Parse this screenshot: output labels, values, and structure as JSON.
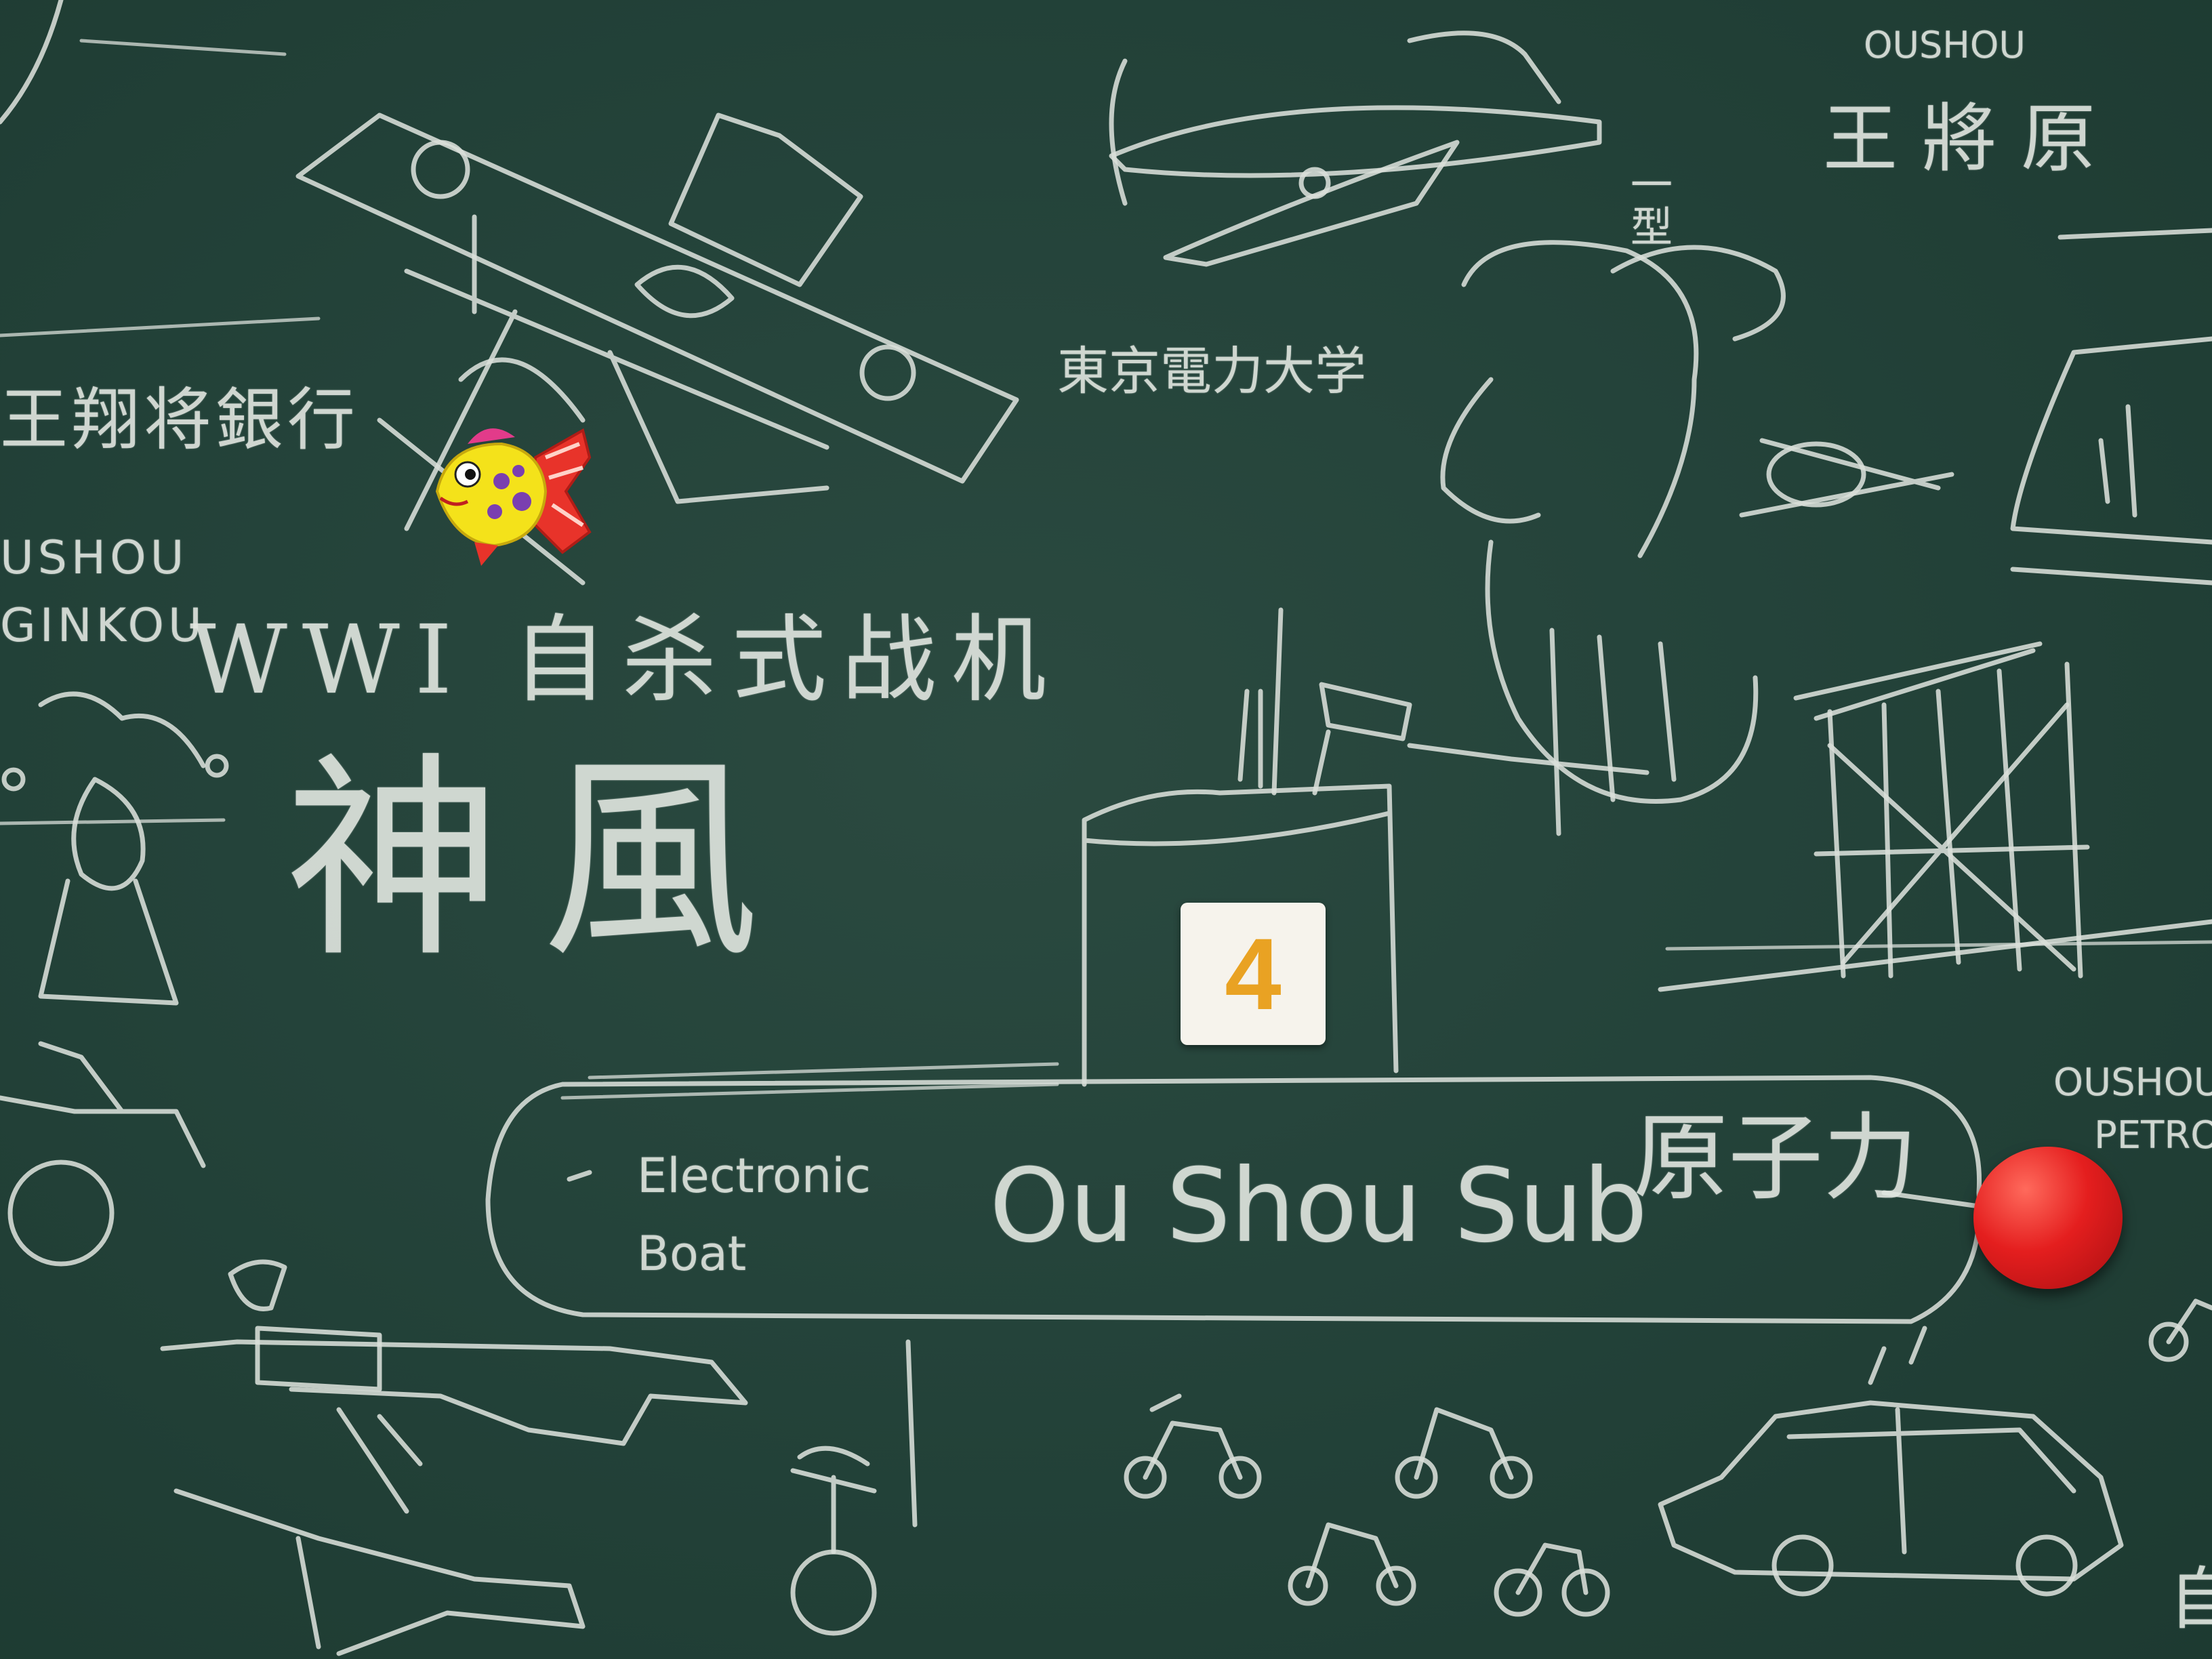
{
  "texts": {
    "top_right_romaji": "OUSHOU",
    "top_right_kanji": "王將原",
    "left_chinese": "王翔将銀行",
    "left_romaji_1": "USHOU",
    "left_romaji_2": "GINKOU",
    "university": "東京電力大学",
    "heading": "WWI 自杀式战机",
    "kamikaze": "神風",
    "sub_prefix": "Electronic",
    "sub_boat": "Boat",
    "sub_name": "Ou Shou Sub",
    "sub_nuclear": "原子力",
    "petro_1": "OUSHOU",
    "petro_2": "PETRO",
    "vertical_note": "一型",
    "card_number": "4",
    "bottom_right_char": "自"
  },
  "colors": {
    "board": "#24433a",
    "chalk": "#d9dfd9",
    "card_digit": "#e9a223",
    "magnet_red": "#e41e1e"
  },
  "icons": [
    "fish-magnet-icon",
    "red-magnet-icon"
  ]
}
